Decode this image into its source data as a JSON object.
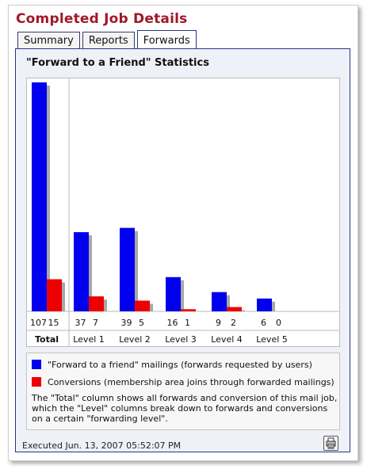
{
  "page": {
    "title": "Completed Job Details"
  },
  "tabs": [
    {
      "label": "Summary",
      "active": false
    },
    {
      "label": "Reports",
      "active": false
    },
    {
      "label": "Forwards",
      "active": true
    }
  ],
  "panel": {
    "stats_title": "\"Forward to a Friend\" Statistics",
    "executed": "Executed Jun. 13, 2007 05:52:07 PM",
    "print_icon": "print-icon"
  },
  "colors": {
    "mailings": "#0000ee",
    "conversions": "#ee0000",
    "title": "#a01828",
    "border": "#2a348a"
  },
  "chart_data": {
    "type": "bar",
    "categories": [
      "Total",
      "Level 1",
      "Level 2",
      "Level 3",
      "Level 4",
      "Level 5"
    ],
    "series": [
      {
        "name": "\"Forward to a friend\" mailings (forwards requested by users)",
        "values": [
          107,
          37,
          39,
          16,
          9,
          6
        ]
      },
      {
        "name": "Conversions (membership area joins through forwarded mailings)",
        "values": [
          15,
          7,
          5,
          1,
          2,
          0
        ]
      }
    ],
    "value_labels": [
      [
        "107",
        "15"
      ],
      [
        "37",
        "7"
      ],
      [
        "39",
        "5"
      ],
      [
        "16",
        "1"
      ],
      [
        "9",
        "2"
      ],
      [
        "6",
        "0"
      ]
    ],
    "ylim": [
      0,
      107
    ],
    "grid": false,
    "legend": "bottom"
  },
  "legend": {
    "note": "The \"Total\" column shows all forwards and conversion of this mail job, which the \"Level\" columns break down to forwards and conversions on a certain \"forwarding level\"."
  }
}
